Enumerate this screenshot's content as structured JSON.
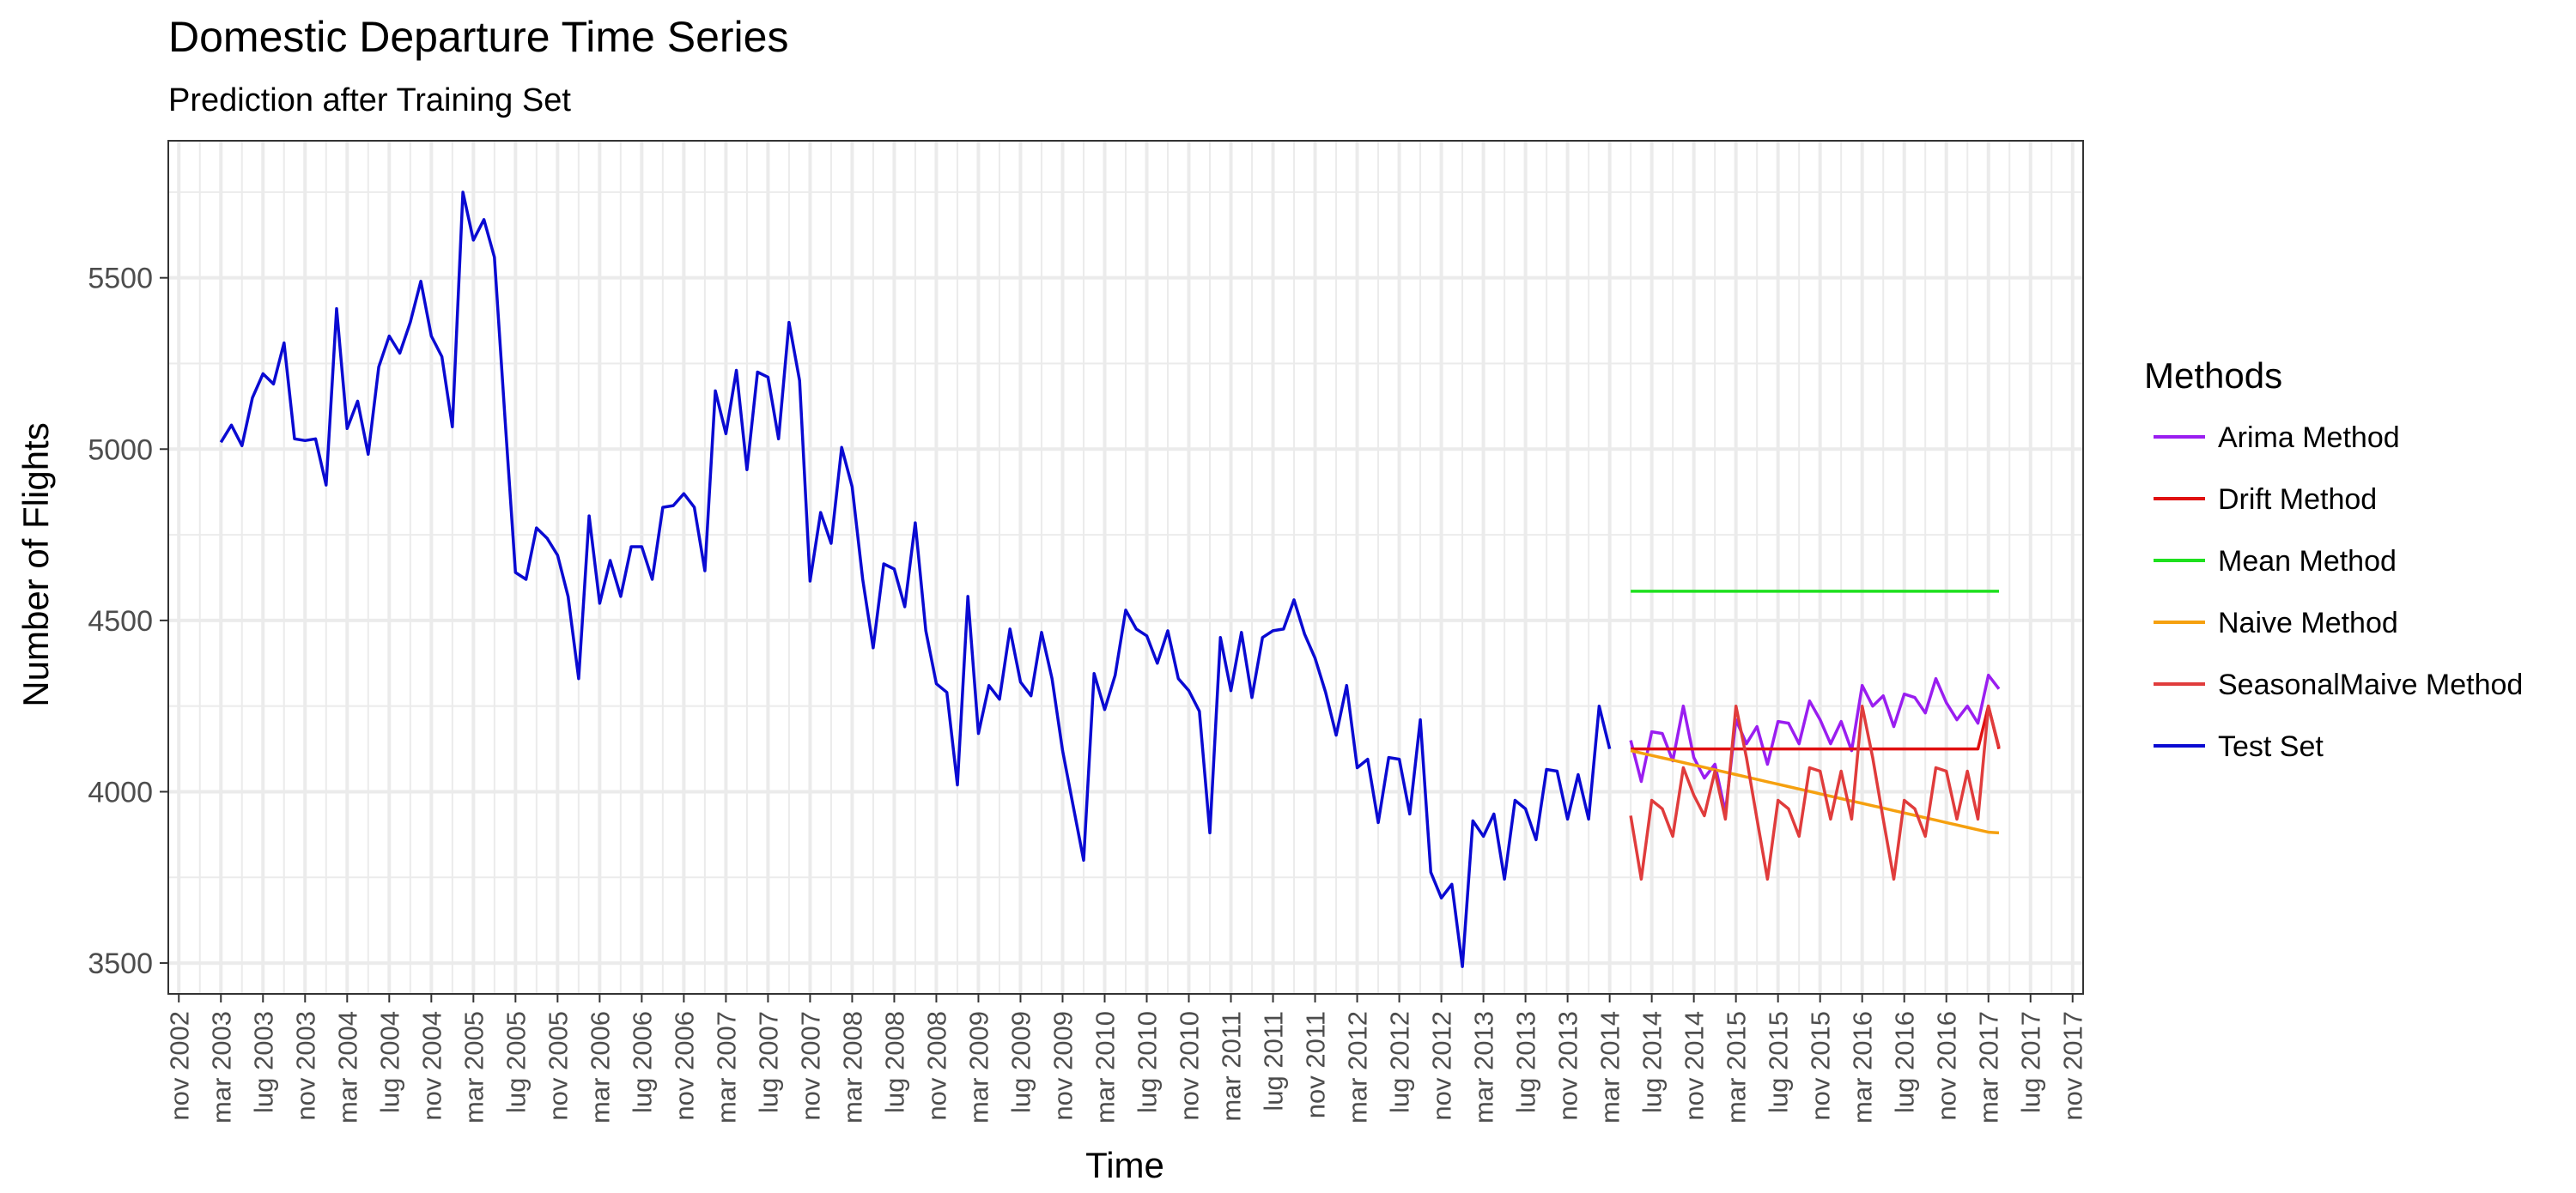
{
  "chart_data": {
    "type": "line",
    "title": "Domestic Departure Time Series",
    "subtitle": "Prediction after Training Set",
    "xlabel": "Time",
    "ylabel": "Number of Flights",
    "ylim": [
      3410,
      5900
    ],
    "yticks": [
      3500,
      4000,
      4500,
      5000,
      5500
    ],
    "xlim": [
      "2002-10",
      "2017-12"
    ],
    "xticks": [
      "nov 2002",
      "mar 2003",
      "lug 2003",
      "nov 2003",
      "mar 2004",
      "lug 2004",
      "nov 2004",
      "mar 2005",
      "lug 2005",
      "nov 2005",
      "mar 2006",
      "lug 2006",
      "nov 2006",
      "mar 2007",
      "lug 2007",
      "nov 2007",
      "mar 2008",
      "lug 2008",
      "nov 2008",
      "mar 2009",
      "lug 2009",
      "nov 2009",
      "mar 2010",
      "lug 2010",
      "nov 2010",
      "mar 2011",
      "lug 2011",
      "nov 2011",
      "mar 2012",
      "lug 2012",
      "nov 2012",
      "mar 2013",
      "lug 2013",
      "nov 2013",
      "mar 2014",
      "lug 2014",
      "nov 2014",
      "mar 2015",
      "lug 2015",
      "nov 2015",
      "mar 2016",
      "lug 2016",
      "nov 2016",
      "mar 2017",
      "lug 2017",
      "nov 2017"
    ],
    "grid": true,
    "legend": {
      "title": "Methods",
      "position": "right"
    },
    "series": [
      {
        "name": "Arima Method",
        "color": "#9A1EF0",
        "start": "2014-05",
        "values": [
          4150,
          4030,
          4175,
          4170,
          4090,
          4250,
          4100,
          4040,
          4080,
          3940,
          4210,
          4140,
          4190,
          4080,
          4205,
          4200,
          4140,
          4265,
          4210,
          4140,
          4205,
          4120,
          4310,
          4250,
          4280,
          4190,
          4285,
          4275,
          4230,
          4330,
          4260,
          4210,
          4250,
          4200,
          4340,
          4300
        ]
      },
      {
        "name": "Drift Method",
        "color": "#E01010",
        "start": "2014-05",
        "values": [
          4125,
          4125,
          4125,
          4125,
          4125,
          4125,
          4125,
          4125,
          4125,
          4125,
          4125,
          4125,
          4125,
          4125,
          4125,
          4125,
          4125,
          4125,
          4125,
          4125,
          4125,
          4125,
          4125,
          4125,
          4125,
          4125,
          4125,
          4125,
          4125,
          4125,
          4125,
          4125,
          4125,
          4125,
          4250,
          4125
        ]
      },
      {
        "name": "Mean Method",
        "color": "#1EE01E",
        "start": "2014-05",
        "values": [
          4585,
          4585,
          4585,
          4585,
          4585,
          4585,
          4585,
          4585,
          4585,
          4585,
          4585,
          4585,
          4585,
          4585,
          4585,
          4585,
          4585,
          4585,
          4585,
          4585,
          4585,
          4585,
          4585,
          4585,
          4585,
          4585,
          4585,
          4585,
          4585,
          4585,
          4585,
          4585,
          4585,
          4585,
          4585,
          4585
        ]
      },
      {
        "name": "Naive Method",
        "color": "#F5A00F",
        "start": "2014-05",
        "values": [
          4120,
          4113,
          4106,
          4099,
          4092,
          4085,
          4078,
          4071,
          4064,
          4057,
          4050,
          4043,
          4036,
          4029,
          4022,
          4015,
          4008,
          4001,
          3994,
          3987,
          3980,
          3973,
          3966,
          3959,
          3952,
          3945,
          3938,
          3931,
          3924,
          3917,
          3910,
          3903,
          3896,
          3889,
          3882,
          3880
        ]
      },
      {
        "name": "SeasonalMaive Method",
        "color": "#E03C3C",
        "start": "2014-05",
        "values": [
          3930,
          3745,
          3975,
          3950,
          3870,
          4070,
          3990,
          3930,
          4060,
          3920,
          4250,
          4100,
          3920,
          3745,
          3975,
          3950,
          3870,
          4070,
          4060,
          3920,
          4060,
          3920,
          4250,
          4100,
          3920,
          3745,
          3975,
          3950,
          3870,
          4070,
          4060,
          3920,
          4060,
          3920,
          4250,
          4130
        ]
      },
      {
        "name": "Test Set",
        "color": "#0A0AD2",
        "start": "2003-03",
        "values": [
          5020,
          5070,
          5010,
          5150,
          5220,
          5190,
          5310,
          5030,
          5025,
          5030,
          4895,
          5410,
          5060,
          5140,
          4985,
          5240,
          5330,
          5280,
          5370,
          5490,
          5330,
          5270,
          5065,
          5750,
          5610,
          5670,
          5560,
          5090,
          4640,
          4620,
          4770,
          4740,
          4690,
          4570,
          4330,
          4805,
          4550,
          4675,
          4570,
          4715,
          4715,
          4620,
          4830,
          4835,
          4870,
          4830,
          4645,
          5170,
          5045,
          5230,
          4940,
          5225,
          5210,
          5030,
          5370,
          5200,
          4615,
          4815,
          4725,
          5005,
          4890,
          4620,
          4420,
          4665,
          4650,
          4540,
          4785,
          4470,
          4315,
          4290,
          4020,
          4570,
          4170,
          4310,
          4270,
          4475,
          4320,
          4280,
          4465,
          4330,
          4120,
          3960,
          3800,
          4345,
          4240,
          4340,
          4530,
          4475,
          4455,
          4375,
          4470,
          4330,
          4295,
          4235,
          3880,
          4450,
          4295,
          4465,
          4275,
          4450,
          4470,
          4475,
          4560,
          4460,
          4390,
          4290,
          4165,
          4310,
          4070,
          4095,
          3910,
          4100,
          4095,
          3935,
          4210,
          3765,
          3690,
          3730,
          3490,
          3915,
          3870,
          3935,
          3745,
          3975,
          3950,
          3860,
          4065,
          4060,
          3920,
          4050,
          3920,
          4250,
          4125
        ]
      }
    ]
  }
}
